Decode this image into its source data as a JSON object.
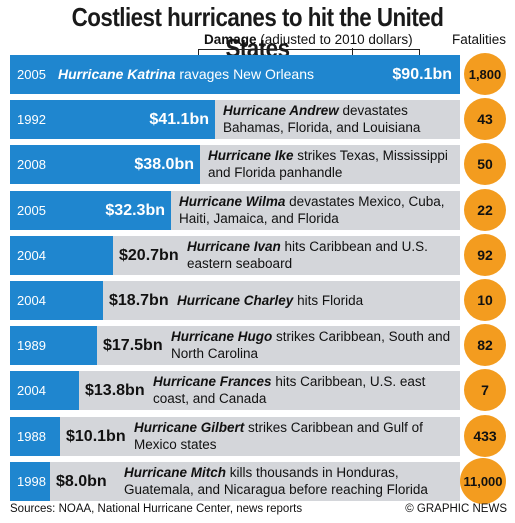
{
  "title": "Costliest hurricanes to hit the United States",
  "damage_label_bold": "Damage",
  "damage_label_rest": " (adjusted to 2010 dollars)",
  "fatalities_label": "Fatalities",
  "source": "Sources: NOAA, National Hurricane Center, news reports",
  "credit": "© GRAPHIC NEWS",
  "chart_data": {
    "type": "bar",
    "orientation": "horizontal",
    "unit": "$bn",
    "xlim": [
      0,
      90.1
    ],
    "rows": [
      {
        "year": "2005",
        "name": "Hurricane Katrina",
        "rest": " ravages New Orleans",
        "value": 90.1,
        "label": "$90.1bn",
        "fatalities": "1,800"
      },
      {
        "year": "1992",
        "name": "Hurricane Andrew",
        "rest": " devastates Bahamas, Florida, and Louisiana",
        "value": 41.1,
        "label": "$41.1bn",
        "fatalities": "43"
      },
      {
        "year": "2008",
        "name": "Hurricane Ike",
        "rest": " strikes Texas, Mississippi and Florida panhandle",
        "value": 38.0,
        "label": "$38.0bn",
        "fatalities": "50"
      },
      {
        "year": "2005",
        "name": "Hurricane Wilma",
        "rest": " devastates Mexico, Cuba, Haiti, Jamaica, and Florida",
        "value": 32.3,
        "label": "$32.3bn",
        "fatalities": "22"
      },
      {
        "year": "2004",
        "name": "Hurricane Ivan",
        "rest": " hits Caribbean and U.S. eastern seaboard",
        "value": 20.7,
        "label": "$20.7bn",
        "fatalities": "92"
      },
      {
        "year": "2004",
        "name": "Hurricane Charley",
        "rest": " hits Florida",
        "value": 18.7,
        "label": "$18.7bn",
        "fatalities": "10"
      },
      {
        "year": "1989",
        "name": "Hurricane Hugo",
        "rest": " strikes Caribbean, South and North Carolina",
        "value": 17.5,
        "label": "$17.5bn",
        "fatalities": "82"
      },
      {
        "year": "2004",
        "name": "Hurricane Frances",
        "rest": " hits Caribbean, U.S. east coast, and Canada",
        "value": 13.8,
        "label": "$13.8bn",
        "fatalities": "7"
      },
      {
        "year": "1988",
        "name": "Hurricane Gilbert",
        "rest": " strikes Caribbean and Gulf of Mexico states",
        "value": 10.1,
        "label": "$10.1bn",
        "fatalities": "433"
      },
      {
        "year": "1998",
        "name": "Hurricane Mitch",
        "rest": " kills thousands in Honduras, Guatemala, and Nicaragua before reaching Florida",
        "value": 8.0,
        "label": "$8.0bn",
        "fatalities": "11,000"
      }
    ],
    "colors": {
      "bar": "#1f86cf",
      "row_background": "#d4d6da",
      "fatality_circle": "#f39c1f"
    }
  }
}
